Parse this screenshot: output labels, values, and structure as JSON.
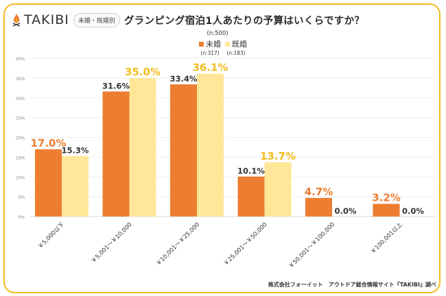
{
  "header": {
    "brand": "TAKIBI",
    "badge": "未婚・既婚別",
    "title": "グランピング宿泊1人あたりの予算はいくらですか？"
  },
  "legend": {
    "total_n": "(n:500)",
    "items": [
      {
        "label": "未婚",
        "n": "(n:317)",
        "color": "#ed7d31"
      },
      {
        "label": "既婚",
        "n": "(n:183)",
        "color": "#ffe699"
      }
    ]
  },
  "source": "株式会社フォーイット　アウトドア総合情報サイト『TAKIBI』調べ",
  "chart_data": {
    "type": "bar",
    "title": "グランピング宿泊1人あたりの予算はいくらですか？",
    "xlabel": "",
    "ylabel": "",
    "ylim": [
      0,
      40
    ],
    "yticks": [
      "0%",
      "5%",
      "10%",
      "15%",
      "20%",
      "25%",
      "30%",
      "35%",
      "40%"
    ],
    "grid": true,
    "legend_position": "top-center",
    "categories": [
      "￥5,000以下",
      "￥5,001～￥10,000",
      "￥10,001～￥25,000",
      "￥25,001～￥50,000",
      "￥50,001～￥100,000",
      "￥100,001以上"
    ],
    "series": [
      {
        "name": "未婚",
        "color": "#ed7d31",
        "values": [
          17.0,
          31.6,
          33.4,
          10.1,
          4.7,
          3.2
        ],
        "labels": [
          "17.0%",
          "31.6%",
          "33.4%",
          "10.1%",
          "4.7%",
          "3.2%"
        ],
        "highlight": [
          true,
          false,
          false,
          false,
          true,
          true
        ]
      },
      {
        "name": "既婚",
        "color": "#ffe699",
        "values": [
          15.3,
          35.0,
          36.1,
          13.7,
          0.0,
          0.0
        ],
        "labels": [
          "15.3%",
          "35.0%",
          "36.1%",
          "13.7%",
          "0.0%",
          "0.0%"
        ],
        "highlight": [
          false,
          true,
          true,
          true,
          false,
          false
        ]
      }
    ],
    "highlight_colors": {
      "未婚": "#ed7d31",
      "既婚": "#f2bd1d",
      "normal": "#333333"
    }
  }
}
